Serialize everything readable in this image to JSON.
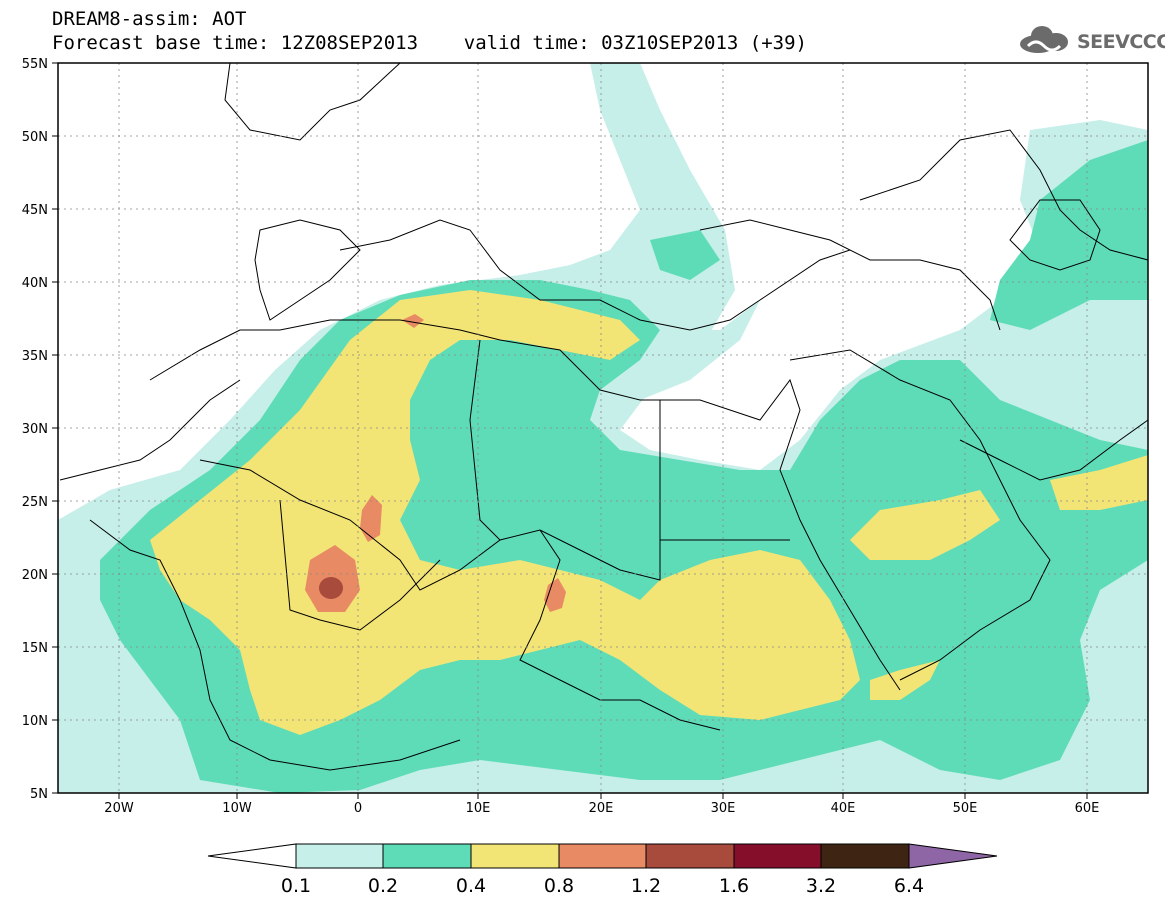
{
  "header": {
    "line1": "DREAM8-assim: AOT",
    "line2": "Forecast base time: 12Z08SEP2013    valid time: 03Z10SEP2013 (+39)",
    "logo_text": "SEEVCCC",
    "logo_icon": "cloud-icon"
  },
  "map": {
    "lat_labels": [
      "55N",
      "50N",
      "45N",
      "40N",
      "35N",
      "30N",
      "25N",
      "20N",
      "15N",
      "10N",
      "5N"
    ],
    "lon_labels": [
      "20W",
      "10W",
      "0",
      "10E",
      "20E",
      "30E",
      "40E",
      "50E",
      "60E"
    ],
    "lat_range": [
      5,
      55
    ],
    "lon_range": [
      -25,
      65
    ],
    "grid": "dashed",
    "fields": [
      {
        "level": "0.1-0.2",
        "color": "#c5efe8"
      },
      {
        "level": "0.2-0.4",
        "color": "#5edcb7"
      },
      {
        "level": "0.4-0.8",
        "color": "#f3e476"
      },
      {
        "level": "0.8-1.2",
        "color": "#e88a63"
      },
      {
        "level": "1.2-1.6",
        "color": "#a84a3c"
      }
    ]
  },
  "colorbar": {
    "labels": [
      "0.1",
      "0.2",
      "0.4",
      "0.8",
      "1.2",
      "1.6",
      "3.2",
      "6.4"
    ],
    "colors": [
      "#ffffff",
      "#c5efe8",
      "#5edcb7",
      "#f3e476",
      "#e88a63",
      "#a84a3c",
      "#850f2b",
      "#3e2412",
      "#8e66a6"
    ]
  }
}
